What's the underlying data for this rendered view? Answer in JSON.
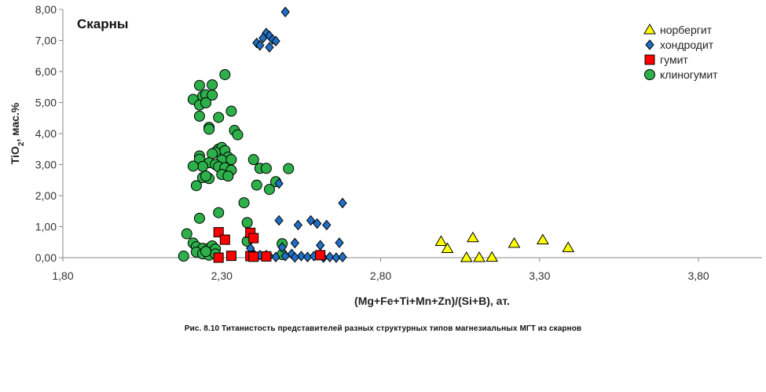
{
  "chart_data": {
    "type": "scatter",
    "title": "Скарны",
    "xlabel": "(Mg+Fe+Ti+Mn+Zn)/(Si+B), ат.",
    "ylabel_main": "TiO",
    "ylabel_sub": "2",
    "ylabel_rest": ", мас.%",
    "xlim": [
      1.8,
      4.0
    ],
    "ylim": [
      0.0,
      8.0
    ],
    "xticks": [
      "1,80",
      "2,30",
      "2,80",
      "3,30",
      "3,80"
    ],
    "xtick_values": [
      1.8,
      2.3,
      2.8,
      3.3,
      3.8
    ],
    "yticks": [
      "0,00",
      "1,00",
      "2,00",
      "3,00",
      "4,00",
      "5,00",
      "6,00",
      "7,00",
      "8,00"
    ],
    "ytick_values": [
      0,
      1,
      2,
      3,
      4,
      5,
      6,
      7,
      8
    ],
    "grid": false,
    "legend_position": "top-right",
    "series": [
      {
        "name": "норбергит",
        "marker": "triangle",
        "color": "#ffff00",
        "points": [
          [
            2.99,
            0.52
          ],
          [
            3.01,
            0.29
          ],
          [
            3.09,
            0.64
          ],
          [
            3.07,
            0.0
          ],
          [
            3.11,
            0.0
          ],
          [
            3.15,
            0.01
          ],
          [
            3.22,
            0.46
          ],
          [
            3.31,
            0.57
          ],
          [
            3.39,
            0.32
          ]
        ]
      },
      {
        "name": "хондродит",
        "marker": "diamond",
        "color": "#1f6fc5",
        "points": [
          [
            2.5,
            7.92
          ],
          [
            2.44,
            7.24
          ],
          [
            2.45,
            7.15
          ],
          [
            2.43,
            7.08
          ],
          [
            2.46,
            7.03
          ],
          [
            2.47,
            6.98
          ],
          [
            2.41,
            6.92
          ],
          [
            2.42,
            6.84
          ],
          [
            2.45,
            6.78
          ],
          [
            2.48,
            2.39
          ],
          [
            2.48,
            1.2
          ],
          [
            2.58,
            1.2
          ],
          [
            2.6,
            1.1
          ],
          [
            2.63,
            1.05
          ],
          [
            2.68,
            1.76
          ],
          [
            2.54,
            1.05
          ],
          [
            2.67,
            0.48
          ],
          [
            2.53,
            0.47
          ],
          [
            2.61,
            0.4
          ],
          [
            2.49,
            0.33
          ],
          [
            2.52,
            0.12
          ],
          [
            2.5,
            0.05
          ],
          [
            2.47,
            0.02
          ],
          [
            2.45,
            0.05
          ],
          [
            2.55,
            0.05
          ],
          [
            2.57,
            0.02
          ],
          [
            2.59,
            0.05
          ],
          [
            2.62,
            0.0
          ],
          [
            2.64,
            0.02
          ],
          [
            2.66,
            0.0
          ],
          [
            2.68,
            0.02
          ],
          [
            2.44,
            0.08
          ],
          [
            2.42,
            0.08
          ],
          [
            2.4,
            0.12
          ],
          [
            2.39,
            0.3
          ],
          [
            2.53,
            0.01
          ]
        ]
      },
      {
        "name": "гумит",
        "marker": "square",
        "color": "#ff0000",
        "points": [
          [
            2.29,
            0.82
          ],
          [
            2.31,
            0.58
          ],
          [
            2.29,
            0.0
          ],
          [
            2.33,
            0.06
          ],
          [
            2.39,
            0.8
          ],
          [
            2.4,
            0.63
          ],
          [
            2.39,
            0.05
          ],
          [
            2.4,
            0.03
          ],
          [
            2.44,
            0.04
          ],
          [
            2.61,
            0.08
          ]
        ]
      },
      {
        "name": "клиногумит",
        "marker": "circle",
        "color": "#2daf4a",
        "points": [
          [
            2.31,
            5.9
          ],
          [
            2.23,
            5.55
          ],
          [
            2.27,
            5.57
          ],
          [
            2.24,
            5.2
          ],
          [
            2.25,
            5.25
          ],
          [
            2.21,
            5.1
          ],
          [
            2.27,
            5.24
          ],
          [
            2.23,
            4.92
          ],
          [
            2.25,
            4.99
          ],
          [
            2.33,
            4.72
          ],
          [
            2.23,
            4.56
          ],
          [
            2.29,
            4.52
          ],
          [
            2.26,
            4.2
          ],
          [
            2.26,
            4.14
          ],
          [
            2.34,
            4.1
          ],
          [
            2.35,
            3.96
          ],
          [
            2.29,
            3.5
          ],
          [
            2.3,
            3.55
          ],
          [
            2.28,
            3.4
          ],
          [
            2.31,
            3.45
          ],
          [
            2.27,
            3.35
          ],
          [
            2.23,
            3.28
          ],
          [
            2.32,
            3.24
          ],
          [
            2.23,
            3.17
          ],
          [
            2.3,
            3.15
          ],
          [
            2.33,
            3.16
          ],
          [
            2.26,
            3.06
          ],
          [
            2.28,
            3.0
          ],
          [
            2.24,
            2.94
          ],
          [
            2.21,
            2.95
          ],
          [
            2.29,
            2.93
          ],
          [
            2.31,
            2.9
          ],
          [
            2.33,
            2.82
          ],
          [
            2.4,
            3.16
          ],
          [
            2.42,
            2.88
          ],
          [
            2.44,
            2.88
          ],
          [
            2.51,
            2.87
          ],
          [
            2.24,
            2.58
          ],
          [
            2.26,
            2.55
          ],
          [
            2.25,
            2.63
          ],
          [
            2.3,
            2.68
          ],
          [
            2.32,
            2.63
          ],
          [
            2.22,
            2.32
          ],
          [
            2.47,
            2.45
          ],
          [
            2.41,
            2.34
          ],
          [
            2.45,
            2.2
          ],
          [
            2.37,
            1.77
          ],
          [
            2.29,
            1.45
          ],
          [
            2.23,
            1.27
          ],
          [
            2.38,
            1.13
          ],
          [
            2.39,
            0.63
          ],
          [
            2.38,
            0.53
          ],
          [
            2.49,
            0.45
          ],
          [
            2.19,
            0.77
          ],
          [
            2.21,
            0.47
          ],
          [
            2.22,
            0.35
          ],
          [
            2.24,
            0.3
          ],
          [
            2.26,
            0.3
          ],
          [
            2.27,
            0.38
          ],
          [
            2.28,
            0.28
          ],
          [
            2.22,
            0.18
          ],
          [
            2.24,
            0.12
          ],
          [
            2.26,
            0.08
          ],
          [
            2.28,
            0.12
          ],
          [
            2.18,
            0.05
          ],
          [
            2.49,
            0.1
          ],
          [
            2.25,
            0.2
          ]
        ]
      }
    ]
  },
  "caption": "Рис. 8.10 Титанистость представителей разных структурных типов магнезиальных МГТ из скарнов"
}
